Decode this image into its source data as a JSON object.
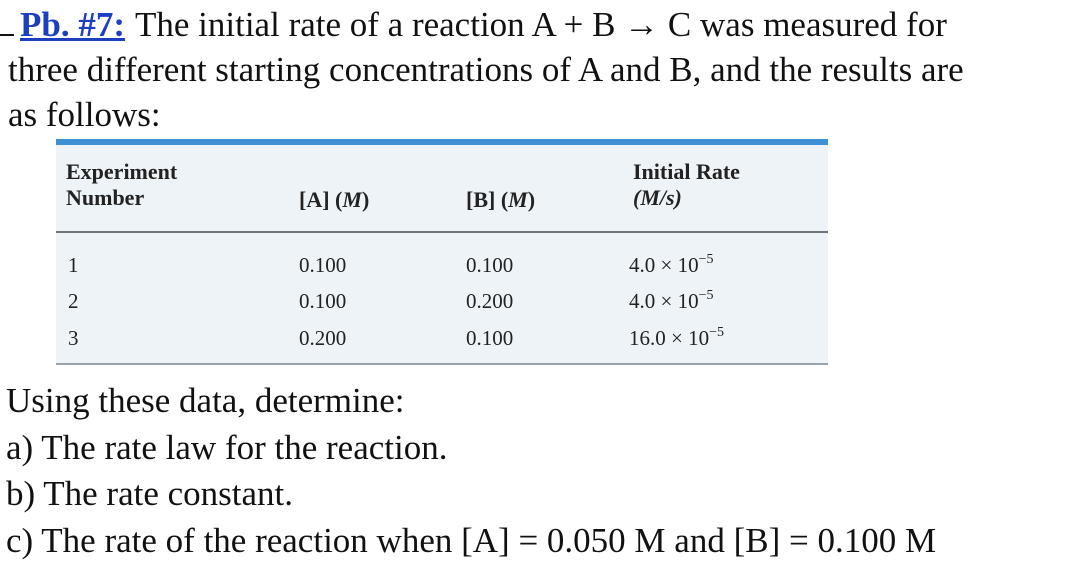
{
  "problem": {
    "label": "Pb. #7:",
    "line1": "The initial rate of a reaction A + B → C was measured for",
    "line2": "three different starting concentrations of A and B, and the results are",
    "line3": "as follows:"
  },
  "table": {
    "headers": {
      "experiment_line1": "Experiment",
      "experiment_line2": "Number",
      "a": "[A] (",
      "a_unit": "M",
      "b": "[B] (",
      "b_unit": "M",
      "rate_line1": "Initial Rate",
      "rate_line2": "(M/s)"
    },
    "rows": [
      {
        "number": "1",
        "a": "0.100",
        "b": "0.100",
        "rate_mantissa": "4.0 × 10",
        "rate_exp": "−5"
      },
      {
        "number": "2",
        "a": "0.100",
        "b": "0.200",
        "rate_mantissa": "4.0 × 10",
        "rate_exp": "−5"
      },
      {
        "number": "3",
        "a": "0.200",
        "b": "0.100",
        "rate_mantissa": "16.0 × 10",
        "rate_exp": "−5"
      }
    ]
  },
  "questions": {
    "intro": "Using these data, determine:",
    "a": "a) The rate law for the reaction.",
    "b": "b) The rate constant.",
    "c": "c) The rate of the reaction when [A] = 0.050 M and [B] = 0.100 M"
  }
}
